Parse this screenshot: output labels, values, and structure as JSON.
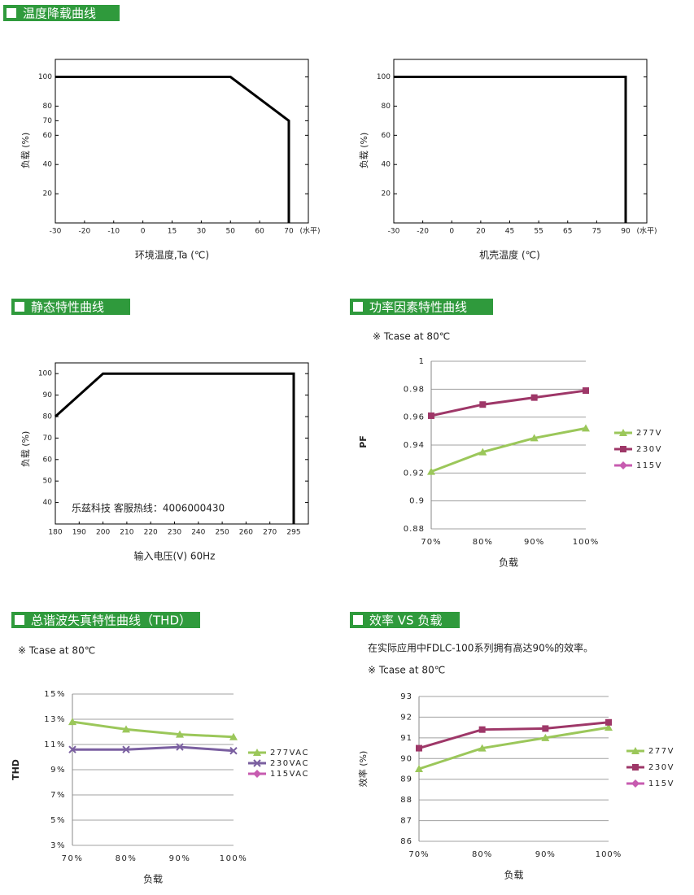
{
  "chart_data": [
    {
      "type": "line",
      "title": "温度降载曲线",
      "ylabel": "负载 (%)",
      "xlabel": "环境温度,Ta (℃)",
      "x_unit": "(水平)",
      "x": [
        -30,
        50,
        70,
        70
      ],
      "values": [
        100,
        100,
        70,
        0
      ],
      "color": "#000000",
      "xticks": [
        -30,
        -20,
        -10,
        0,
        15,
        30,
        50,
        60,
        70
      ],
      "ylim": [
        0,
        112
      ],
      "yticks": [
        20,
        40,
        60,
        70,
        80,
        100
      ]
    },
    {
      "type": "line",
      "ylabel": "负载 (%)",
      "xlabel": "机壳温度 (℃)",
      "x_unit": "(水平)",
      "x": [
        -30,
        90,
        90
      ],
      "values": [
        100,
        100,
        0
      ],
      "color": "#000000",
      "xticks": [
        -30,
        -20,
        0,
        20,
        45,
        55,
        65,
        75,
        90
      ],
      "ylim": [
        0,
        112
      ],
      "yticks": [
        20,
        40,
        60,
        80,
        100
      ]
    },
    {
      "type": "line",
      "title": "静态特性曲线",
      "ylabel": "负载 (%)",
      "xlabel": "输入电压(V) 60Hz",
      "annotation": "乐兹科技 客服热线：4006000430",
      "x": [
        180,
        200,
        295,
        295
      ],
      "values": [
        80,
        100,
        100,
        30
      ],
      "color": "#000000",
      "xticks": [
        180,
        190,
        200,
        210,
        220,
        230,
        240,
        250,
        260,
        270,
        295
      ],
      "ylim": [
        30,
        105
      ],
      "yticks": [
        40,
        50,
        60,
        70,
        80,
        90,
        100
      ]
    },
    {
      "type": "line",
      "title": "功率因素特性曲线",
      "note": "※ Tcase at 80℃",
      "ylabel": "PF",
      "xlabel": "负载",
      "categories": [
        "70%",
        "80%",
        "90%",
        "100%"
      ],
      "series": [
        {
          "name": "277V",
          "color": "#9bc75a",
          "marker": "triangle",
          "values": [
            0.921,
            0.935,
            0.945,
            0.952
          ]
        },
        {
          "name": "230V",
          "color": "#9e3768",
          "marker": "square",
          "values": [
            0.961,
            0.969,
            0.974,
            0.979
          ]
        },
        {
          "name": "115V",
          "color": "#c75bb0",
          "marker": "diamond",
          "values": [
            null,
            null,
            null,
            null
          ]
        }
      ],
      "ylim": [
        0.88,
        1
      ],
      "yticks": [
        0.88,
        0.9,
        0.92,
        0.94,
        0.96,
        0.98,
        1
      ],
      "grid": true
    },
    {
      "type": "line",
      "title": "总谐波失真特性曲线（THD）",
      "note": "※ Tcase at 80℃",
      "ylabel": "THD",
      "xlabel": "负载",
      "categories": [
        "70%",
        "80%",
        "90%",
        "100%"
      ],
      "series": [
        {
          "name": "277VAC",
          "color": "#9bc75a",
          "marker": "triangle",
          "values": [
            12.8,
            12.2,
            11.8,
            11.6
          ]
        },
        {
          "name": "230VAC",
          "color": "#7a5fa0",
          "marker": "x",
          "values": [
            10.6,
            10.6,
            10.8,
            10.5
          ]
        },
        {
          "name": "115VAC",
          "color": "#c75bb0",
          "marker": "diamond",
          "values": [
            null,
            null,
            null,
            null
          ]
        }
      ],
      "ylim": [
        3,
        15
      ],
      "yticks": [
        {
          "value": 3,
          "label": "3%"
        },
        {
          "value": 5,
          "label": "5%"
        },
        {
          "value": 7,
          "label": "7%"
        },
        {
          "value": 9,
          "label": "9%"
        },
        {
          "value": 11,
          "label": "11%"
        },
        {
          "value": 13,
          "label": "13%"
        },
        {
          "value": 15,
          "label": "15%"
        }
      ],
      "grid": true
    },
    {
      "type": "line",
      "title": "效率 VS 负载",
      "text": "在实际应用中FDLC-100系列拥有高达90%的效率。",
      "note": "※ Tcase at 80℃",
      "ylabel": "效率 (%)",
      "xlabel": "负载",
      "categories": [
        "70%",
        "80%",
        "90%",
        "100%"
      ],
      "series": [
        {
          "name": "277V",
          "color": "#9bc75a",
          "marker": "triangle",
          "values": [
            89.5,
            90.5,
            91,
            91.5
          ]
        },
        {
          "name": "230V",
          "color": "#9e3768",
          "marker": "square",
          "values": [
            90.5,
            91.4,
            91.45,
            91.75
          ]
        },
        {
          "name": "115V",
          "color": "#c75bb0",
          "marker": "diamond",
          "values": [
            null,
            null,
            null,
            null
          ]
        }
      ],
      "ylim": [
        86,
        93
      ],
      "yticks": [
        86,
        87,
        88,
        89,
        90,
        91,
        92,
        93
      ],
      "grid": true
    }
  ]
}
